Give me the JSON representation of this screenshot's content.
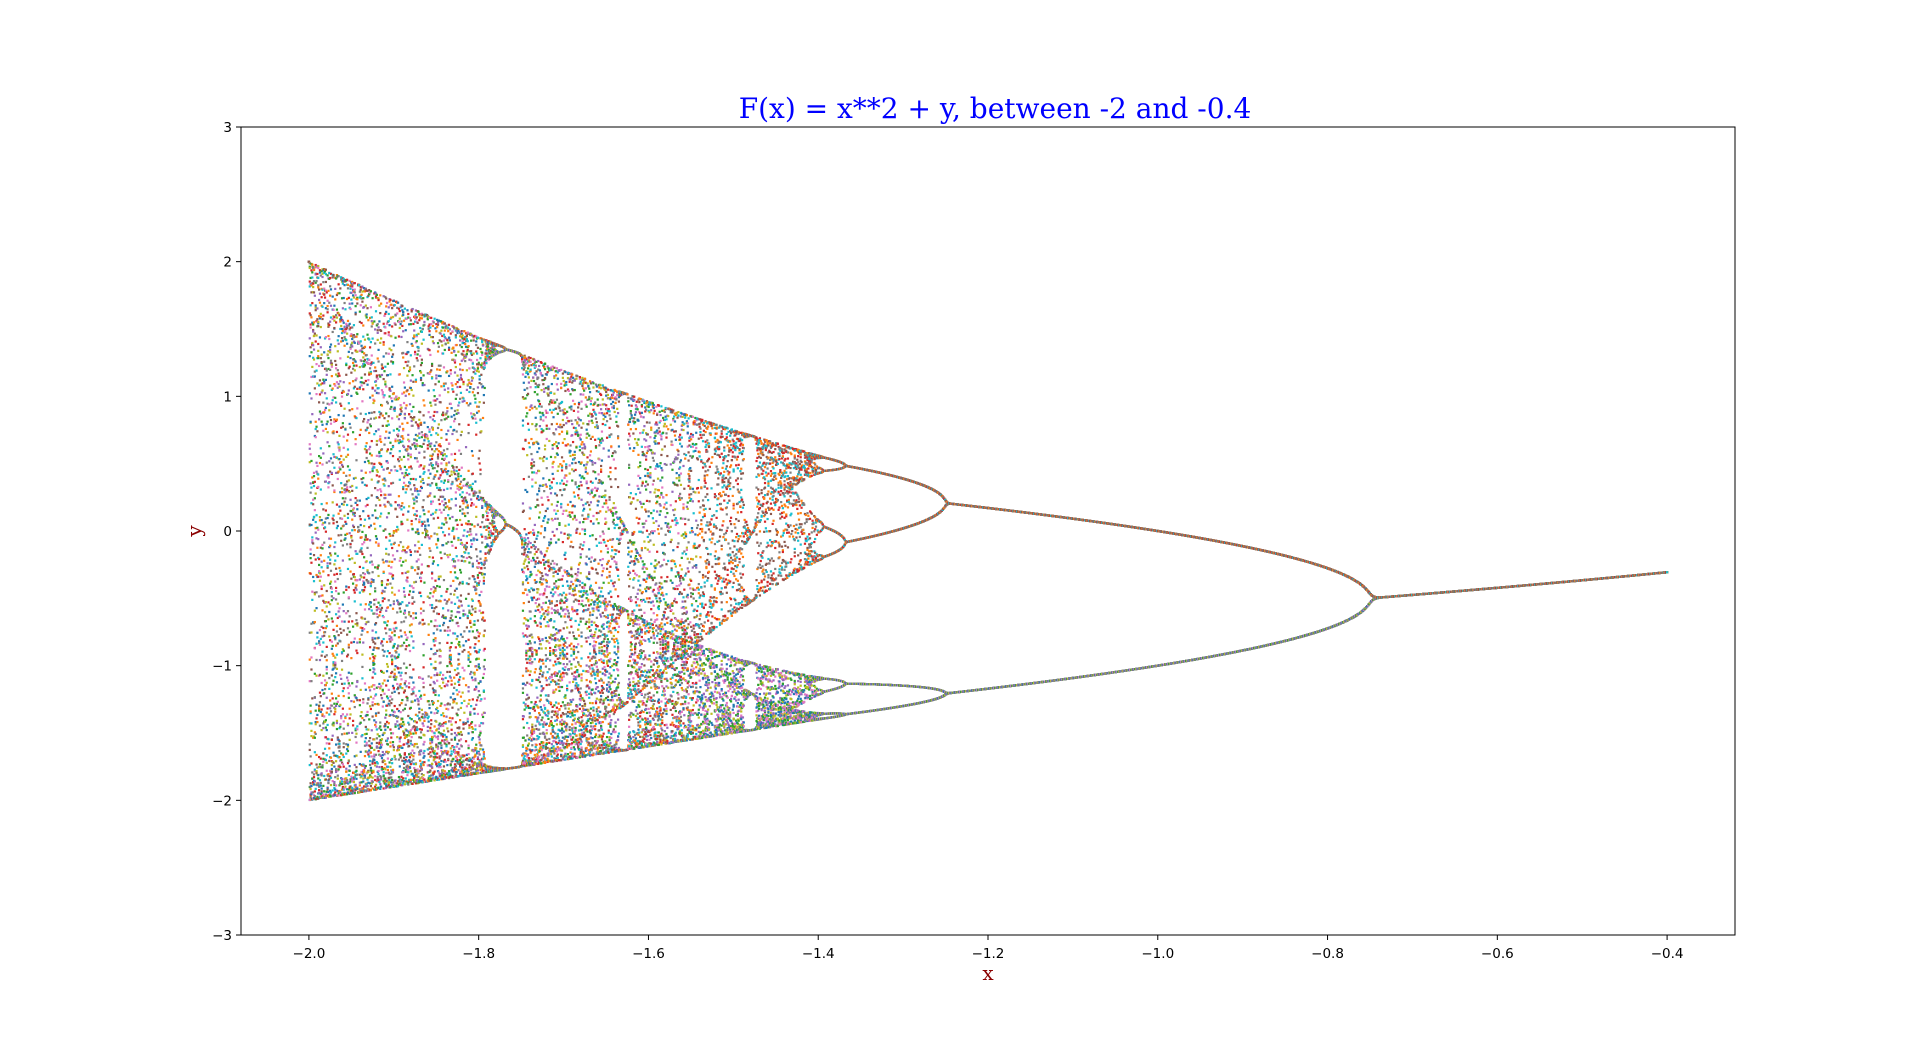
{
  "chart_data": {
    "type": "scatter",
    "title": "F(x) = x**2 + y, between -2 and -0.4",
    "xlabel": "x",
    "ylabel": "y",
    "xlim": [
      -2.08,
      -0.32
    ],
    "ylim": [
      -3,
      3
    ],
    "x_ticks": [
      -2.0,
      -1.8,
      -1.6,
      -1.4,
      -1.2,
      -1.0,
      -0.8,
      -0.6,
      -0.4
    ],
    "x_tick_labels": [
      "−2.0",
      "−1.8",
      "−1.6",
      "−1.4",
      "−1.2",
      "−1.0",
      "−0.8",
      "−0.6",
      "−0.4"
    ],
    "y_ticks": [
      -3,
      -2,
      -1,
      0,
      1,
      2,
      3
    ],
    "y_tick_labels": [
      "−3",
      "−2",
      "−1",
      "0",
      "1",
      "2",
      "3"
    ],
    "grid": false,
    "legend": "none",
    "map": "x_{n+1} = x_n^2 + c",
    "c_range": [
      -2.0,
      -0.4
    ],
    "c_samples": 1600,
    "points_per_c": 26,
    "colors": {
      "title": "#0000ff",
      "axis_label": "#8b0000",
      "axes": "#000000",
      "point_palette": [
        "#1f77b4",
        "#ff7f0e",
        "#2ca02c",
        "#d62728",
        "#9467bd",
        "#8c564b",
        "#e377c2",
        "#7f7f7f",
        "#bcbd22",
        "#17becf"
      ]
    }
  }
}
